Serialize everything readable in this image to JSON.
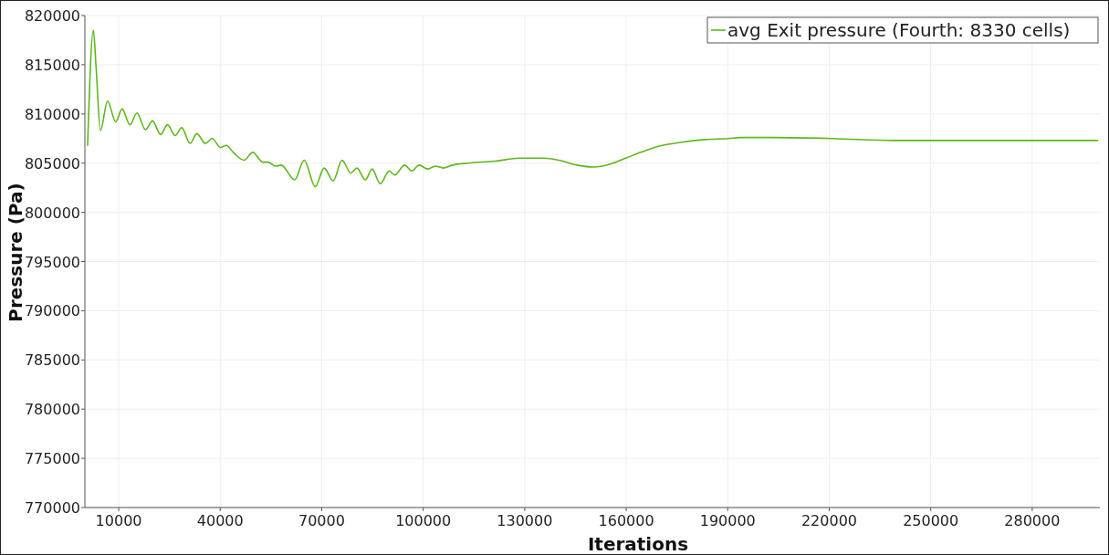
{
  "chart_data": {
    "type": "line",
    "xlabel": "Iterations",
    "ylabel": "Pressure (Pa)",
    "xlim": [
      0,
      300000
    ],
    "xticks": [
      10000,
      40000,
      70000,
      100000,
      130000,
      160000,
      190000,
      220000,
      250000,
      280000
    ],
    "ylim": [
      770000,
      820000
    ],
    "yticks": [
      770000,
      775000,
      780000,
      785000,
      790000,
      795000,
      800000,
      805000,
      810000,
      815000,
      820000
    ],
    "grid": true,
    "legend": "top right",
    "marker": "none",
    "line_style": "solid",
    "series": [
      {
        "name": "avg Exit pressure (Fourth: 8330 cells)",
        "color": "#5cb81a",
        "x": [
          800,
          2500,
          3300,
          4600,
          6700,
          9100,
          11000,
          13300,
          15400,
          17900,
          20000,
          22400,
          24400,
          26700,
          28600,
          31100,
          33100,
          35600,
          37600,
          40100,
          41800,
          44100,
          47100,
          49600,
          52600,
          54100,
          56400,
          58000,
          62000,
          64800,
          68100,
          70700,
          73400,
          76000,
          78600,
          80400,
          82900,
          84900,
          87300,
          89900,
          91600,
          94500,
          96600,
          98800,
          101300,
          103600,
          106000,
          108700,
          113200,
          121200,
          128400,
          135600,
          140100,
          145500,
          150400,
          155300,
          159800,
          164300,
          170600,
          176000,
          183200,
          190200,
          193900,
          202900,
          220800,
          238800,
          256700,
          274700,
          299300
        ],
        "values": [
          806800,
          818500,
          814800,
          808300,
          811300,
          809200,
          810500,
          808900,
          810100,
          808400,
          809300,
          807900,
          808900,
          807800,
          808600,
          807000,
          808000,
          807000,
          807500,
          806600,
          806800,
          806000,
          805300,
          806100,
          805100,
          805100,
          804700,
          804800,
          803300,
          805300,
          802600,
          804500,
          803200,
          805300,
          804000,
          804500,
          803300,
          804400,
          802900,
          804200,
          803800,
          804800,
          804200,
          804800,
          804400,
          804700,
          804500,
          804800,
          805000,
          805200,
          805500,
          805500,
          805300,
          804800,
          804600,
          804900,
          805500,
          806100,
          806800,
          807100,
          807400,
          807500,
          807600,
          807600,
          807500,
          807300,
          807300,
          807300,
          807300
        ]
      }
    ]
  }
}
